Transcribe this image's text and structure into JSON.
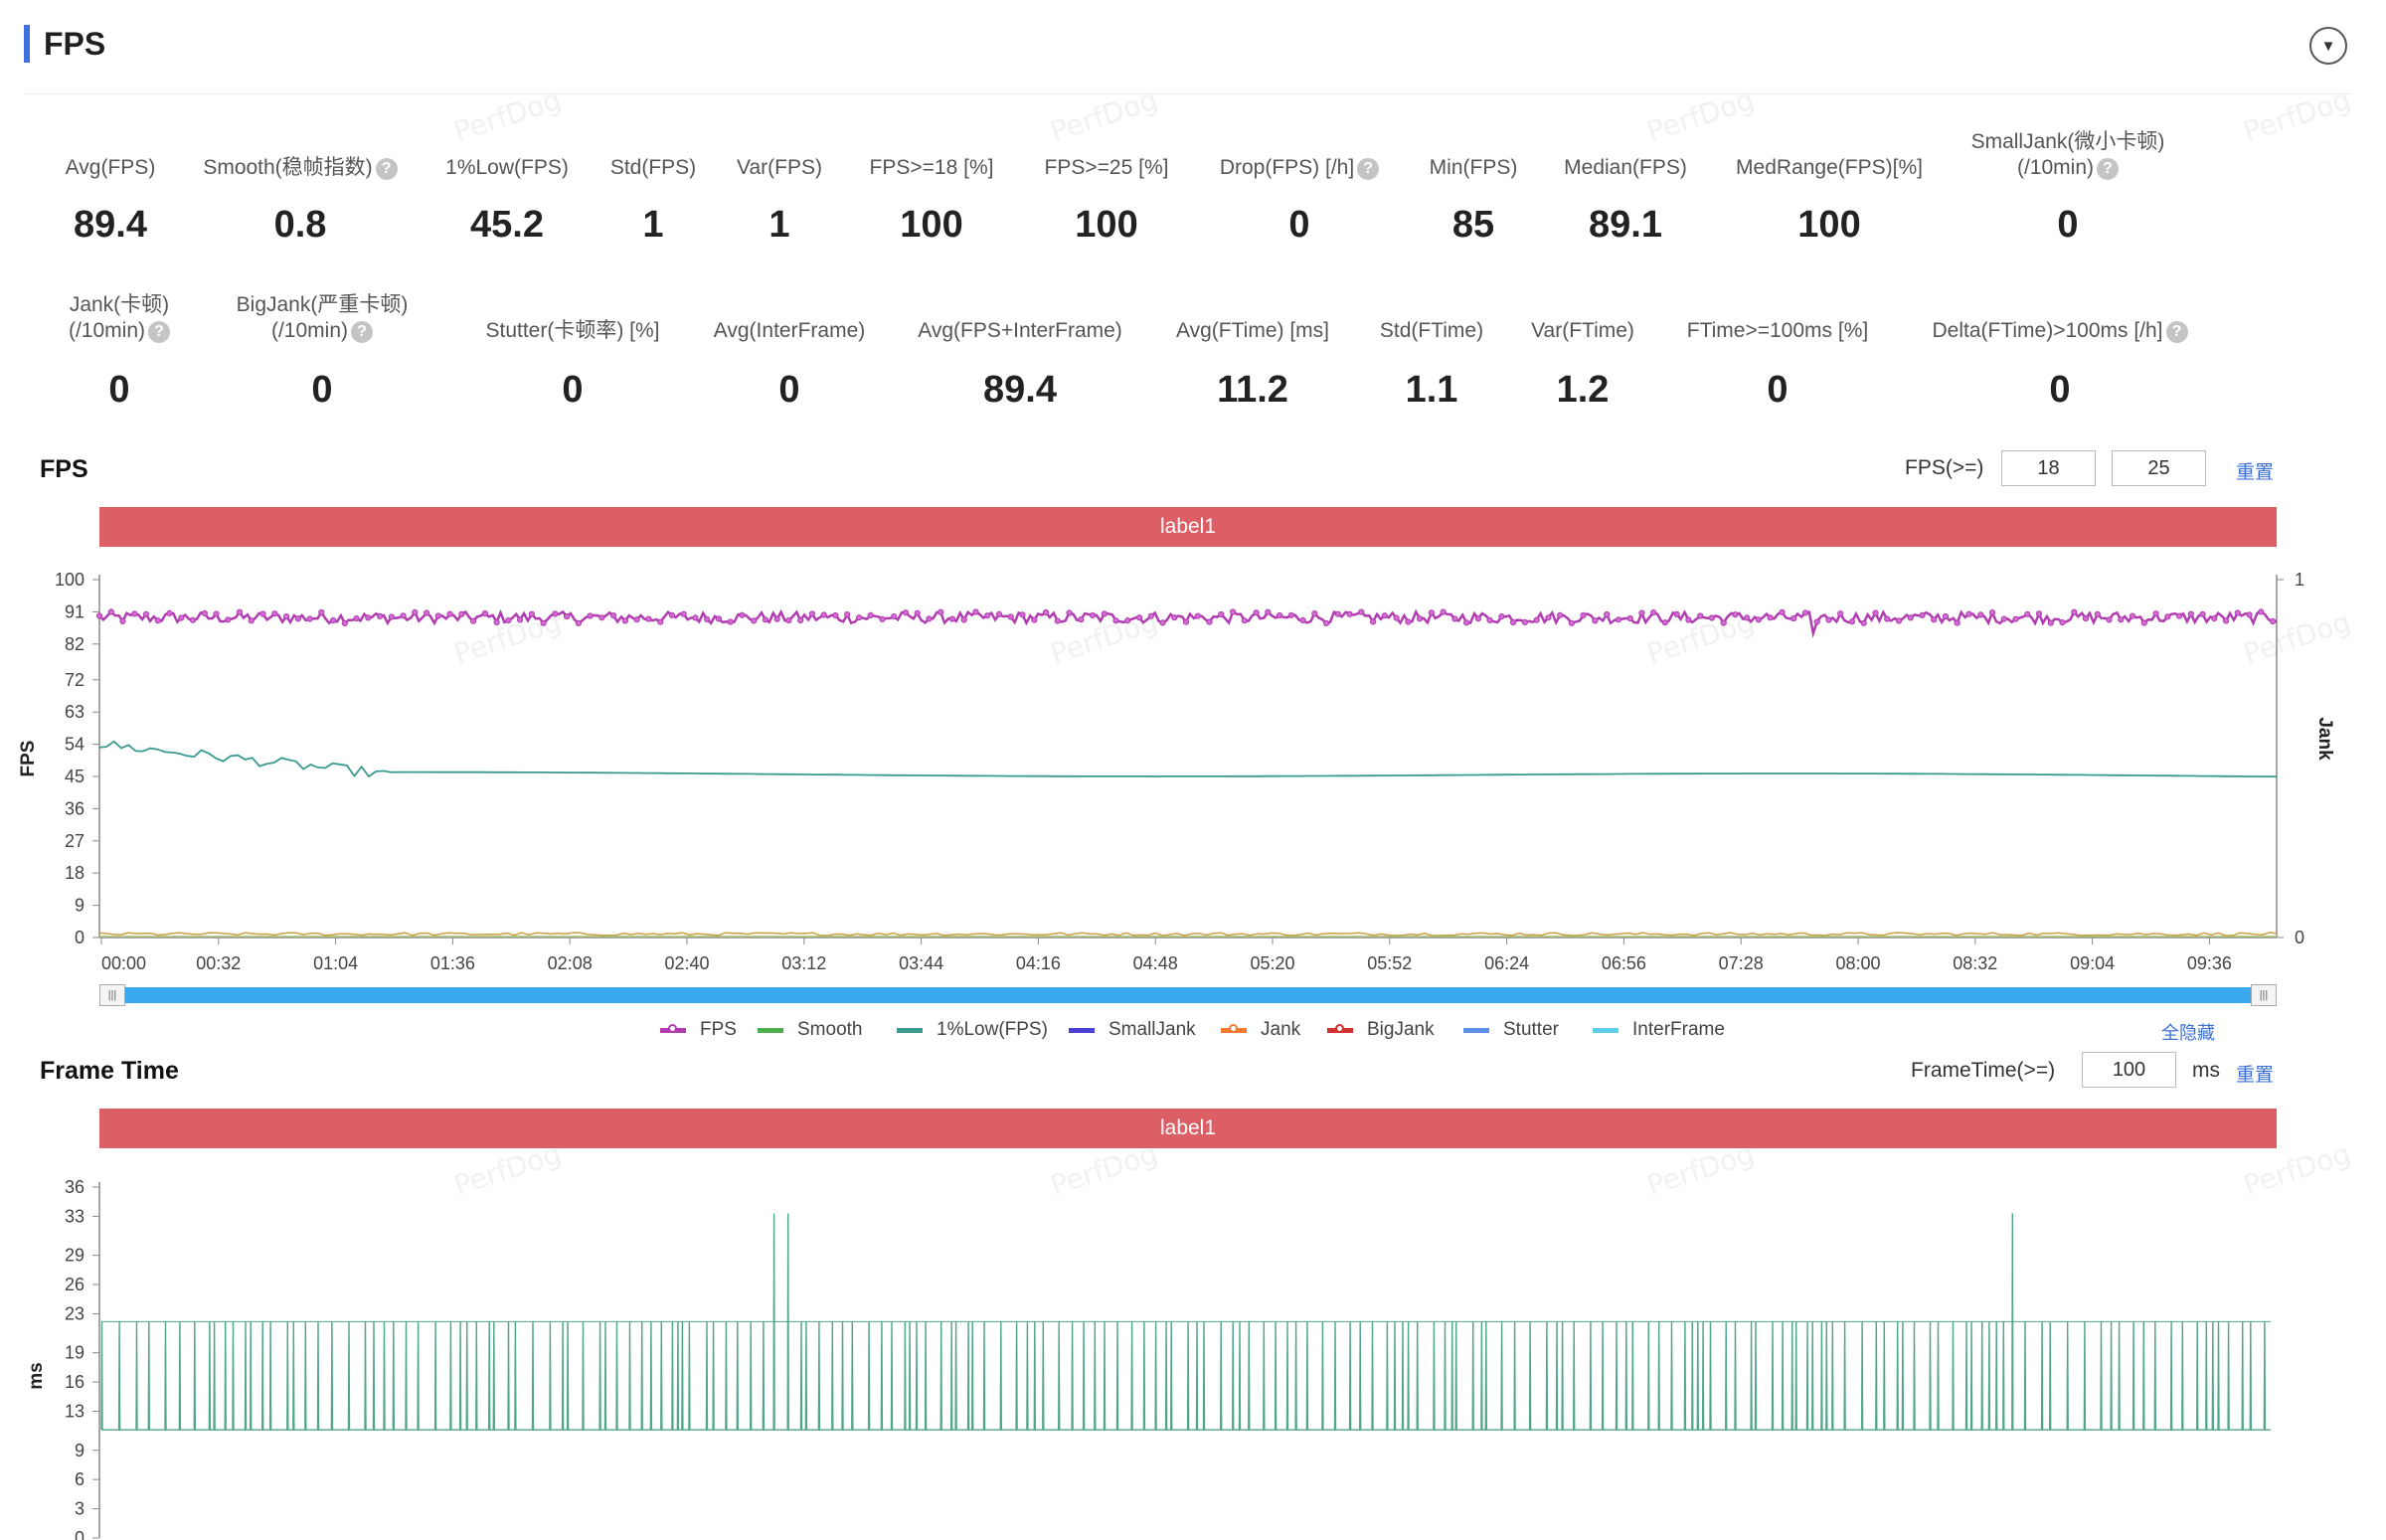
{
  "header": {
    "title": "FPS",
    "collapse_icon": "chevron-down-icon"
  },
  "watermark": "PerfDog",
  "stats_row1": [
    {
      "label": "Avg(FPS)",
      "value": "89.4",
      "help": false
    },
    {
      "label": "Smooth(稳帧指数)",
      "value": "0.8",
      "help": true
    },
    {
      "label": "1%Low(FPS)",
      "value": "45.2",
      "help": false
    },
    {
      "label": "Std(FPS)",
      "value": "1",
      "help": false
    },
    {
      "label": "Var(FPS)",
      "value": "1",
      "help": false
    },
    {
      "label": "FPS>=18 [%]",
      "value": "100",
      "help": false
    },
    {
      "label": "FPS>=25 [%]",
      "value": "100",
      "help": false
    },
    {
      "label": "Drop(FPS) [/h]",
      "value": "0",
      "help": true
    },
    {
      "label": "Min(FPS)",
      "value": "85",
      "help": false
    },
    {
      "label": "Median(FPS)",
      "value": "89.1",
      "help": false
    },
    {
      "label": "MedRange(FPS)[%]",
      "value": "100",
      "help": false
    },
    {
      "label": "SmallJank(微小卡顿)",
      "label2": "(/10min)",
      "value": "0",
      "help": true
    }
  ],
  "stats_row2": [
    {
      "label": "Jank(卡顿)",
      "label2": "(/10min)",
      "value": "0",
      "help": true
    },
    {
      "label": "BigJank(严重卡顿)",
      "label2": "(/10min)",
      "value": "0",
      "help": true
    },
    {
      "label": "Stutter(卡顿率) [%]",
      "value": "0",
      "help": false
    },
    {
      "label": "Avg(InterFrame)",
      "value": "0",
      "help": false
    },
    {
      "label": "Avg(FPS+InterFrame)",
      "value": "89.4",
      "help": false
    },
    {
      "label": "Avg(FTime) [ms]",
      "value": "11.2",
      "help": false
    },
    {
      "label": "Std(FTime)",
      "value": "1.1",
      "help": false
    },
    {
      "label": "Var(FTime)",
      "value": "1.2",
      "help": false
    },
    {
      "label": "FTime>=100ms [%]",
      "value": "0",
      "help": false
    },
    {
      "label": "Delta(FTime)>100ms [/h]",
      "value": "0",
      "help": true
    }
  ],
  "fps_section": {
    "title": "FPS",
    "threshold_label": "FPS(>=)",
    "threshold1": "18",
    "threshold2": "25",
    "reset": "重置",
    "band_label": "label1"
  },
  "frametime_section": {
    "title": "Frame Time",
    "threshold_label": "FrameTime(>=)",
    "threshold": "100",
    "unit": "ms",
    "reset": "重置",
    "band_label": "label1"
  },
  "legend": {
    "items": [
      {
        "name": "FPS",
        "color": "#b03cb0"
      },
      {
        "name": "Smooth",
        "color": "#4cae4c"
      },
      {
        "name": "1%Low(FPS)",
        "color": "#3a9a8e"
      },
      {
        "name": "SmallJank",
        "color": "#4b3fd6"
      },
      {
        "name": "Jank",
        "color": "#f07a30"
      },
      {
        "name": "BigJank",
        "color": "#d03030"
      },
      {
        "name": "Stutter",
        "color": "#5b8ee6"
      },
      {
        "name": "InterFrame",
        "color": "#5ccfe6"
      }
    ],
    "hide_all": "全隐藏"
  },
  "chart_data": [
    {
      "type": "line",
      "ylabel": "FPS",
      "y2label": "Jank",
      "yticks": [
        0,
        9,
        18,
        27,
        36,
        45,
        54,
        63,
        72,
        82,
        91,
        100
      ],
      "y2ticks": [
        "0",
        "1"
      ],
      "xticks": [
        "00:00",
        "00:32",
        "01:04",
        "01:36",
        "02:08",
        "02:40",
        "03:12",
        "03:44",
        "04:16",
        "04:48",
        "05:20",
        "05:52",
        "06:24",
        "06:56",
        "07:28",
        "08:00",
        "08:32",
        "09:04",
        "09:36"
      ],
      "ylim": [
        0,
        100
      ],
      "series": [
        {
          "name": "FPS",
          "mean": 89.4,
          "min": 85,
          "color": "#b03cb0"
        },
        {
          "name": "1%Low(FPS)",
          "start": 54,
          "settle": 45.5,
          "color": "#3a9a8e"
        },
        {
          "name": "Jank",
          "value": 0,
          "color": "#f07a30"
        }
      ]
    },
    {
      "type": "line",
      "ylabel": "ms",
      "yticks": [
        0,
        3,
        6,
        9,
        13,
        16,
        19,
        23,
        26,
        29,
        33,
        36
      ],
      "ylim": [
        0,
        36
      ],
      "series": [
        {
          "name": "FrameTime",
          "low": 11.1,
          "high": 22.2,
          "peak": 33.3,
          "color": "#4fa68a"
        }
      ]
    }
  ]
}
